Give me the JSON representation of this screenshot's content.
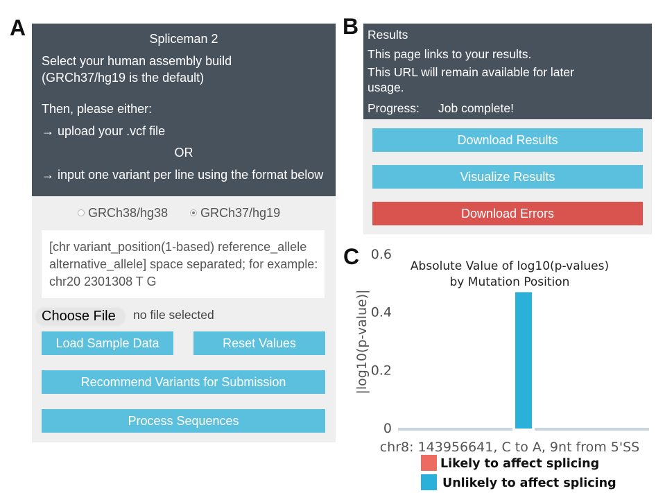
{
  "panel_labels": {
    "a": "A",
    "b": "B",
    "c": "C"
  },
  "panel_a": {
    "header": {
      "title": "Spliceman 2",
      "instruction_line_1": "Select your human assembly build",
      "instruction_line_2": "(GRCh37/hg19 is the default)",
      "then": "Then, please either:",
      "option_upload": "→ upload your .vcf file",
      "or": "OR",
      "option_input": "→ input one variant per line using the format below"
    },
    "assembly_options": [
      {
        "label": "GRCh38/hg38",
        "selected": false
      },
      {
        "label": "GRCh37/hg19",
        "selected": true
      }
    ],
    "variant_input": {
      "placeholder_lines": [
        "[chr variant_position(1-based) reference_allele",
        "alternative_allele] space separated; for example:",
        "chr20 2301308 T G"
      ]
    },
    "file_input": {
      "button_label": "Choose File",
      "status": "no file selected"
    },
    "buttons": {
      "load_sample_data": "Load Sample Data",
      "reset_values": "Reset Values",
      "recommend_variants": "Recommend Variants for Submission",
      "process_sequences": "Process Sequences"
    }
  },
  "panel_b": {
    "header": {
      "title": "Results",
      "links_text": "This page links to your results.",
      "url_text_line_1": "This URL will remain available for later",
      "url_text_line_2": "usage.",
      "progress_label": "Progress:",
      "progress_value": "Job complete!"
    },
    "buttons": {
      "download_results": "Download Results",
      "visualize_results": "Visualize Results",
      "download_errors": "Download Errors"
    }
  },
  "colors": {
    "header_bg": "#48525d",
    "panel_bg": "#efefef",
    "primary_button": "#5bc0de",
    "danger_button": "#d9534f"
  },
  "chart_data": {
    "type": "bar",
    "title": [
      "Absolute Value of log10(p-values)",
      "by Mutation Position"
    ],
    "xlabel": "chr8: 143956641, C to A, 9nt from 5'SS",
    "ylabel": "|log10(p-value)|",
    "ylim": [
      0,
      0.6
    ],
    "yticks": [
      0,
      0.2,
      0.4,
      0.6
    ],
    "ytick_labels": [
      "0",
      "0.2",
      "0.4",
      "0.6"
    ],
    "series": [
      {
        "name": "Likely to affect splicing",
        "color": "#ee6b62",
        "values": [
          null
        ]
      },
      {
        "name": "Unlikely to affect splicing",
        "color": "#2bb0d9",
        "values": [
          0.47
        ]
      }
    ],
    "legend_placement": "bottom",
    "grid": false,
    "axis_color": "#c9d4e1"
  }
}
